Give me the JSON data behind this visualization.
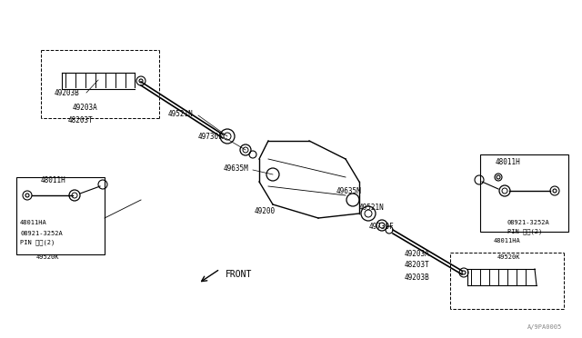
{
  "bg_color": "#ffffff",
  "line_color": "#000000",
  "title": "",
  "watermark": "A/9PA0005",
  "front_label": "FRONT",
  "parts": [
    {
      "id": "49203B",
      "label": "49203B"
    },
    {
      "id": "49203A_left",
      "label": "49203A"
    },
    {
      "id": "48203T_left",
      "label": "48203T"
    },
    {
      "id": "49521N_left",
      "label": "49521N"
    },
    {
      "id": "49730F_left",
      "label": "49730F"
    },
    {
      "id": "49635M_left",
      "label": "49635M"
    },
    {
      "id": "49200",
      "label": "49200"
    },
    {
      "id": "49635M_right",
      "label": "49635M"
    },
    {
      "id": "49521N_right",
      "label": "49521N"
    },
    {
      "id": "49730F_right",
      "label": "49730F"
    },
    {
      "id": "49203A_right",
      "label": "49203A"
    },
    {
      "id": "48203T_right",
      "label": "48203T"
    },
    {
      "id": "49203B_right",
      "label": "49203B"
    },
    {
      "id": "48011H_left",
      "label": "48011H"
    },
    {
      "id": "48011HA_left",
      "label": "48011HA"
    },
    {
      "id": "08921_left",
      "label": "08921-3252A"
    },
    {
      "id": "pin_left",
      "label": "PIN ビン(2)"
    },
    {
      "id": "49520K_left",
      "label": "49520K"
    },
    {
      "id": "48011H_right",
      "label": "48011H"
    },
    {
      "id": "48011HA_right",
      "label": "48011HA"
    },
    {
      "id": "08921_right",
      "label": "08921-3252A"
    },
    {
      "id": "pin_right",
      "label": "PIN ビン(2)"
    },
    {
      "id": "49520K_right",
      "label": "49520K"
    }
  ]
}
